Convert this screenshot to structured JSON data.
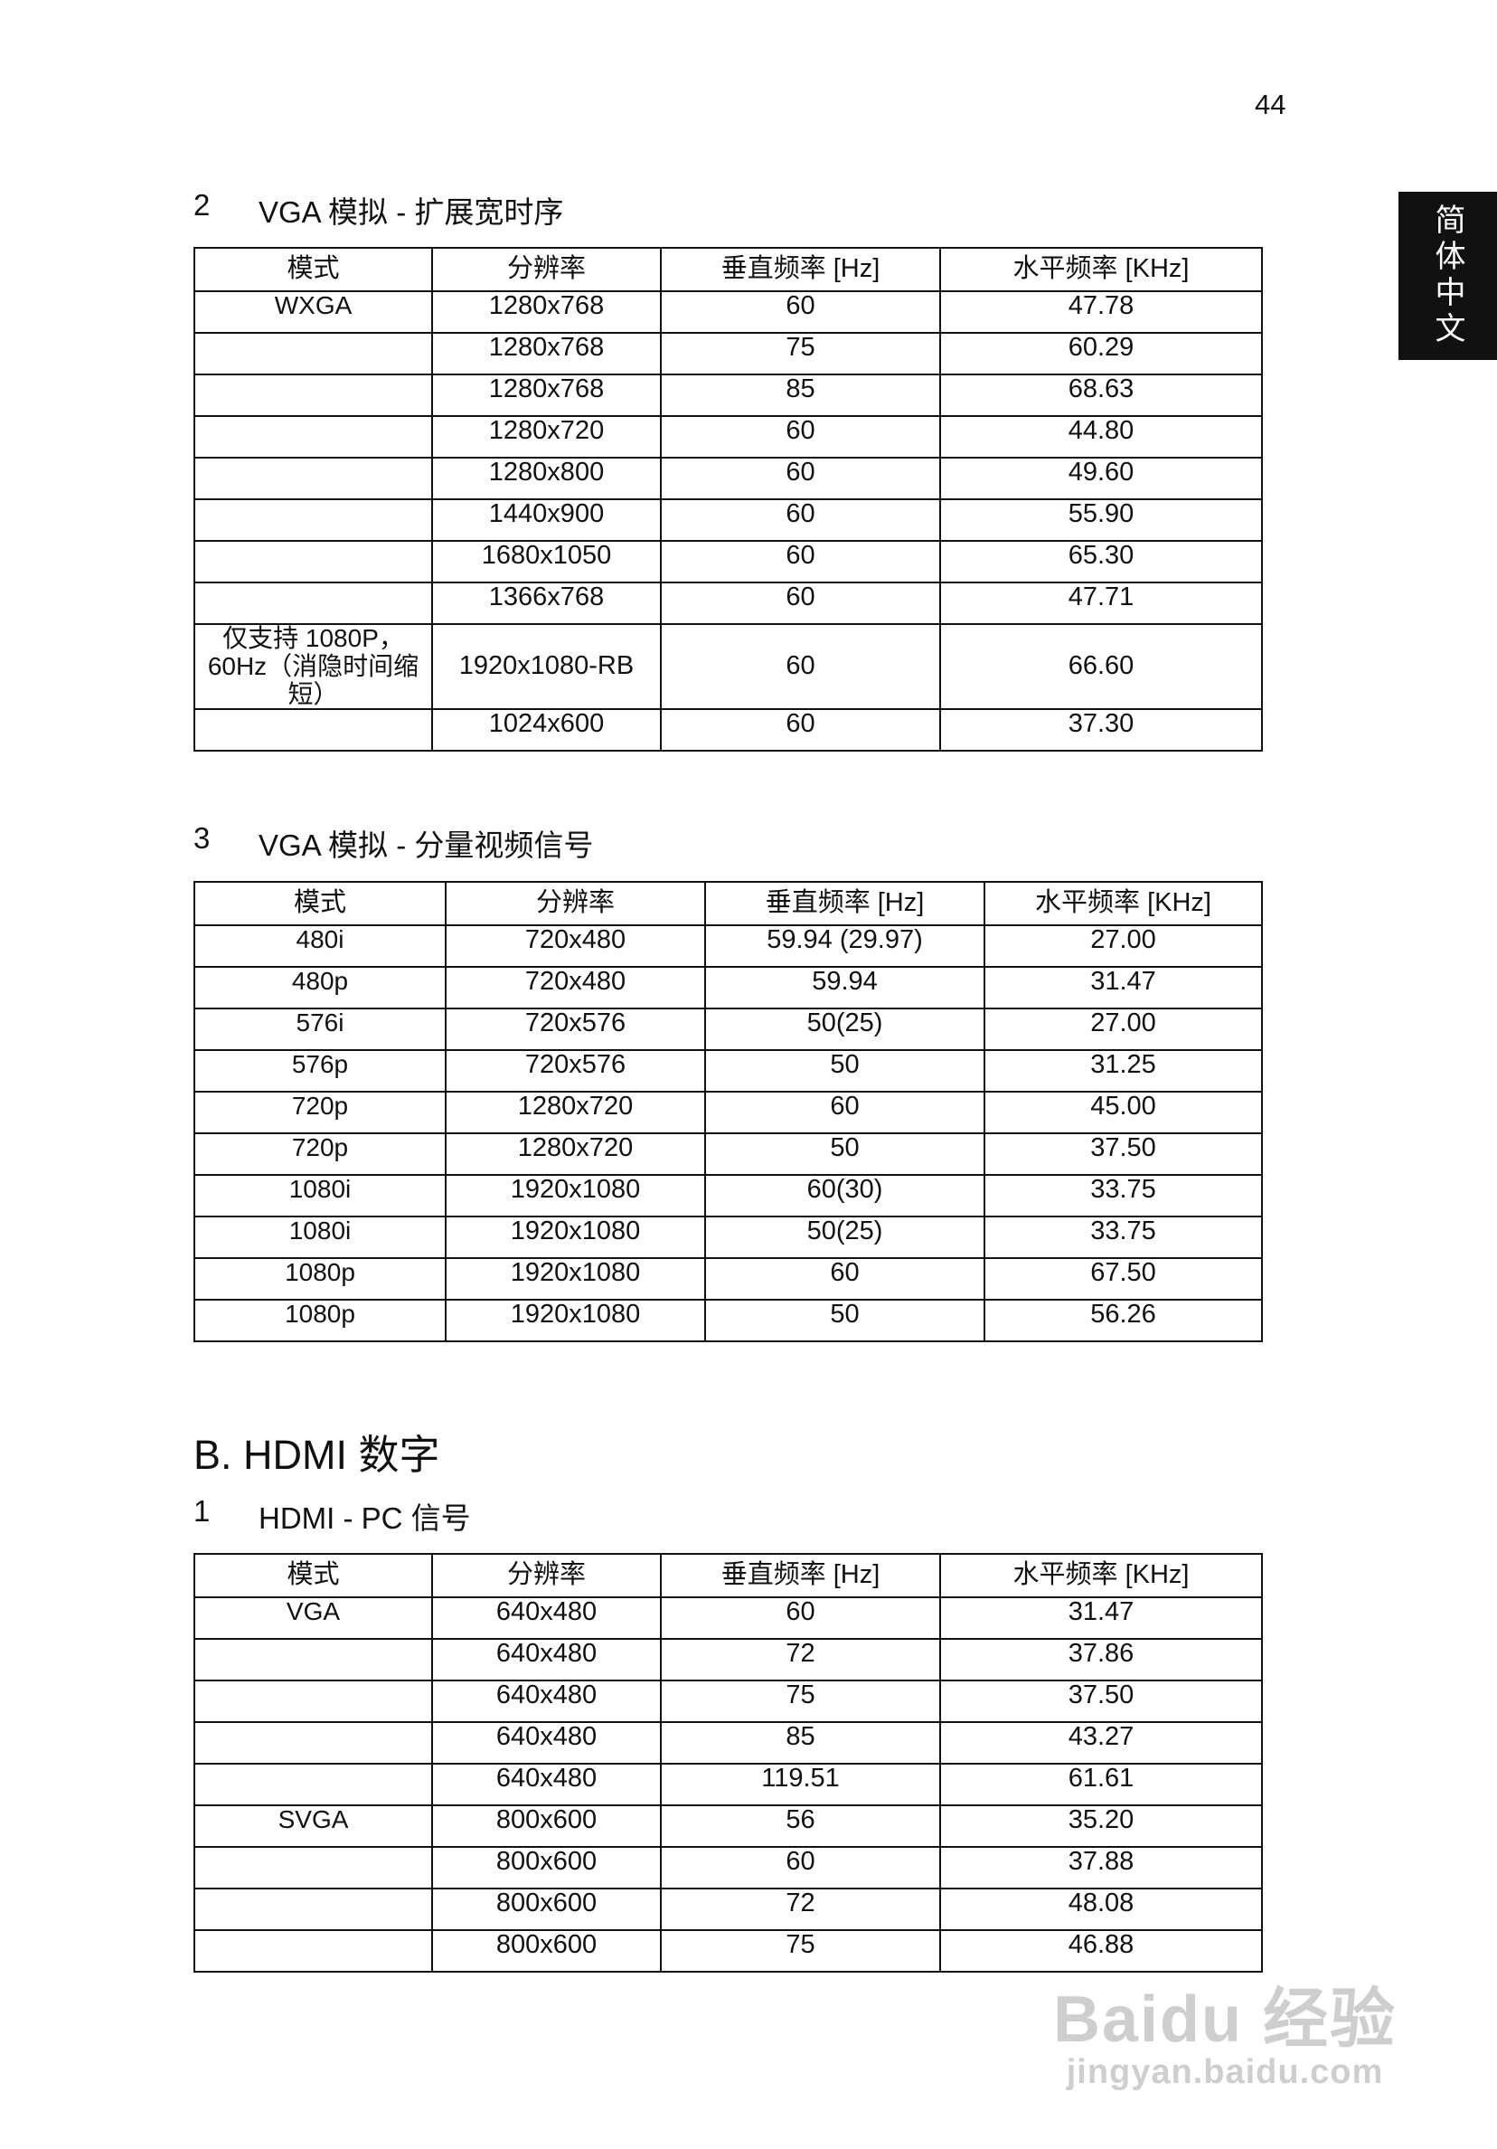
{
  "page_number": "44",
  "side_tab": "简体中文",
  "headers": [
    "模式",
    "分辨率",
    "垂直频率 [Hz]",
    "水平频率 [KHz]"
  ],
  "section2": {
    "number": "2",
    "title": "VGA 模拟 - 扩展宽时序",
    "rows": [
      [
        "WXGA",
        "1280x768",
        "60",
        "47.78"
      ],
      [
        "",
        "1280x768",
        "75",
        "60.29"
      ],
      [
        "",
        "1280x768",
        "85",
        "68.63"
      ],
      [
        "",
        "1280x720",
        "60",
        "44.80"
      ],
      [
        "",
        "1280x800",
        "60",
        "49.60"
      ],
      [
        "",
        "1440x900",
        "60",
        "55.90"
      ],
      [
        "",
        "1680x1050",
        "60",
        "65.30"
      ],
      [
        "",
        "1366x768",
        "60",
        "47.71"
      ],
      [
        "仅支持 1080P， 60Hz（消隐时间缩短）",
        "1920x1080-RB",
        "60",
        "66.60"
      ],
      [
        "",
        "1024x600",
        "60",
        "37.30"
      ]
    ]
  },
  "section3": {
    "number": "3",
    "title": "VGA 模拟 - 分量视频信号",
    "rows": [
      [
        "480i",
        "720x480",
        "59.94 (29.97)",
        "27.00"
      ],
      [
        "480p",
        "720x480",
        "59.94",
        "31.47"
      ],
      [
        "576i",
        "720x576",
        "50(25)",
        "27.00"
      ],
      [
        "576p",
        "720x576",
        "50",
        "31.25"
      ],
      [
        "720p",
        "1280x720",
        "60",
        "45.00"
      ],
      [
        "720p",
        "1280x720",
        "50",
        "37.50"
      ],
      [
        "1080i",
        "1920x1080",
        "60(30)",
        "33.75"
      ],
      [
        "1080i",
        "1920x1080",
        "50(25)",
        "33.75"
      ],
      [
        "1080p",
        "1920x1080",
        "60",
        "67.50"
      ],
      [
        "1080p",
        "1920x1080",
        "50",
        "56.26"
      ]
    ]
  },
  "sectionB": {
    "title": "B. HDMI 数字",
    "sub_number": "1",
    "sub_title": "HDMI - PC 信号",
    "rows": [
      [
        "VGA",
        "640x480",
        "60",
        "31.47"
      ],
      [
        "",
        "640x480",
        "72",
        "37.86"
      ],
      [
        "",
        "640x480",
        "75",
        "37.50"
      ],
      [
        "",
        "640x480",
        "85",
        "43.27"
      ],
      [
        "",
        "640x480",
        "119.51",
        "61.61"
      ],
      [
        "SVGA",
        "800x600",
        "56",
        "35.20"
      ],
      [
        "",
        "800x600",
        "60",
        "37.88"
      ],
      [
        "",
        "800x600",
        "72",
        "48.08"
      ],
      [
        "",
        "800x600",
        "75",
        "46.88"
      ]
    ]
  },
  "watermark": {
    "line1": "Baidu 经验",
    "line2": "jingyan.baidu.com"
  }
}
